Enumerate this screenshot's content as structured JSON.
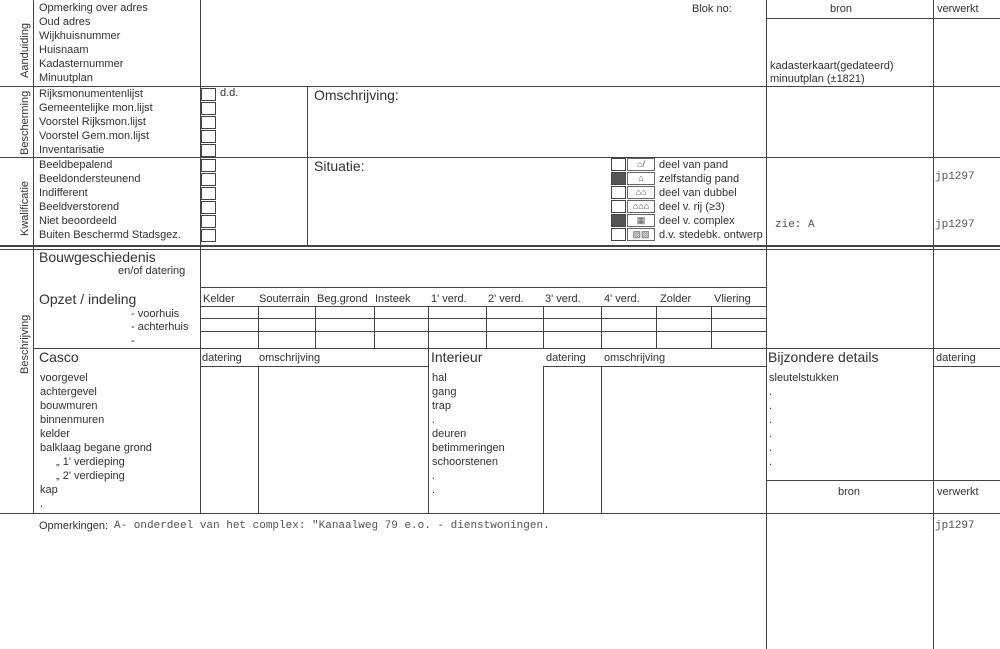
{
  "sections": {
    "aanduiding": "Aanduiding",
    "bescherming": "Bescherming",
    "kwalificatie": "Kwalificatie",
    "beschrijving": "Beschrijving"
  },
  "aanduiding_items": [
    "Opmerking over adres",
    "Oud adres",
    "Wijkhuisnummer",
    "Huisnaam",
    "Kadasternummer",
    "Minuutplan"
  ],
  "bescherming_items": [
    "Rijksmonumentenlijst",
    "Gemeentelijke mon.lijst",
    "Voorstel Rijksmon.lijst",
    "Voorstel Gem.mon.lijst",
    "Inventarisatie"
  ],
  "kwalificatie_items": [
    "Beeldbepalend",
    "Beeldondersteunend",
    "Indifferent",
    "Beeldverstorend",
    "Niet beoordeeld",
    "Buiten Beschermd Stadsgez."
  ],
  "blok_no": "Blok no:",
  "bron": "bron",
  "verwerkt": "verwerkt",
  "bron_entries": [
    "kadasterkaart(gedateerd)",
    "minuutplan (±1821)"
  ],
  "dd": "d.d.",
  "omschrijving": "Omschrijving:",
  "situatie": "Situatie:",
  "situatie_options": [
    {
      "label": "deel van pand",
      "checked": false
    },
    {
      "label": "zelfstandig pand",
      "checked": true
    },
    {
      "label": "deel van dubbel",
      "checked": false
    },
    {
      "label": "deel v. rij  (≥3)",
      "checked": false
    },
    {
      "label": "deel v. complex",
      "checked": true
    },
    {
      "label": "d.v. stedebk. ontwerp",
      "checked": false
    }
  ],
  "zie": "zie: A",
  "verwerkt_entries": [
    "jp1297",
    "jp1297",
    "jp1297"
  ],
  "bouwgeschiedenis": "Bouwgeschiedenis",
  "en_of_datering": "en/of datering",
  "opzet": "Opzet / indeling",
  "opzet_rows": [
    "- voorhuis",
    "- achterhuis",
    "-"
  ],
  "opzet_cols": [
    "Kelder",
    "Souterrain",
    "Beg.grond",
    "Insteek",
    "1' verd.",
    "2' verd.",
    "3' verd.",
    "4' verd.",
    "Zolder",
    "Vliering"
  ],
  "casco": "Casco",
  "datering": "datering",
  "omschrijving_col": "omschrijving",
  "casco_items": [
    "voorgevel",
    "achtergevel",
    "bouwmuren",
    "binnenmuren",
    "kelder",
    "balklaag begane grond",
    "„      1' verdieping",
    "„      2' verdieping",
    "kap",
    "."
  ],
  "interieur": "Interieur",
  "interieur_items": [
    "hal",
    "gang",
    "trap",
    ".",
    "deuren",
    "betimmeringen",
    "schoorstenen",
    ".",
    "."
  ],
  "bijzondere": "Bijzondere details",
  "bijzondere_items": [
    "sleutelstukken",
    ".",
    ".",
    ".",
    ".",
    ".",
    "."
  ],
  "opmerkingen_label": "Opmerkingen:",
  "opmerkingen_text": "A- onderdeel van het complex: \"Kanaalweg 79 e.o. - dienstwoningen."
}
